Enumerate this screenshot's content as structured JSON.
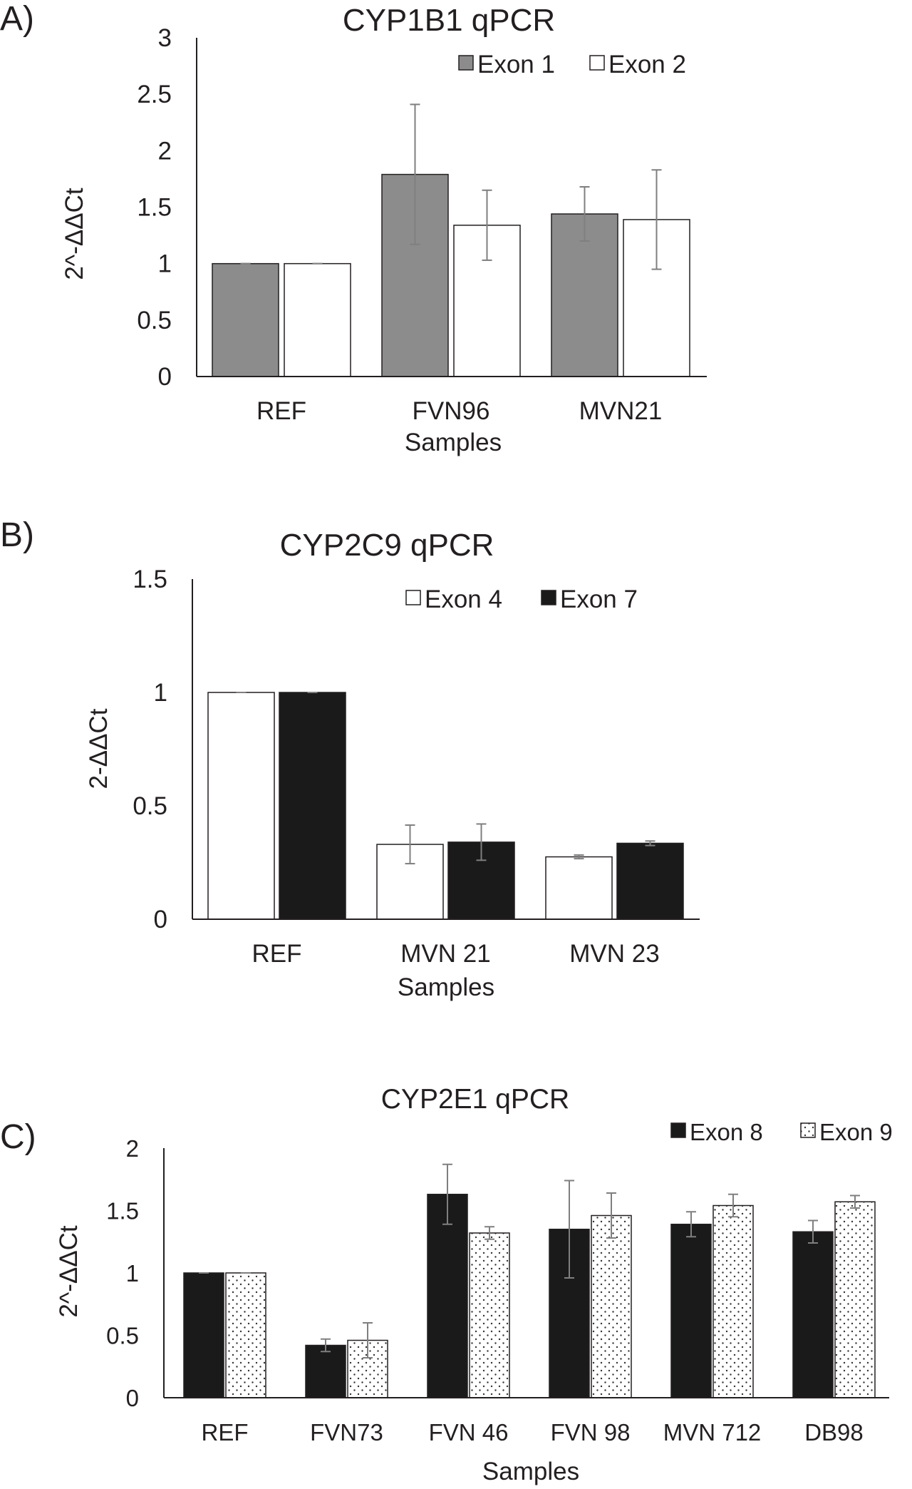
{
  "chart_data": [
    {
      "panel_label": "A)",
      "type": "bar",
      "title": "CYP1B1 qPCR",
      "xlabel": "Samples",
      "ylabel": "2^-ΔΔCt",
      "ylim": [
        0,
        3
      ],
      "yticks": [
        "0",
        "0.5",
        "1",
        "1.5",
        "2",
        "2.5",
        "3"
      ],
      "categories": [
        "REF",
        "FVN96",
        "MVN21"
      ],
      "legend_position": "top-right",
      "series": [
        {
          "name": "Exon 1",
          "fill": "#8c8c8c",
          "pattern": "solid",
          "values": [
            1.0,
            1.79,
            1.44
          ],
          "errors": [
            0.0,
            0.62,
            0.24
          ]
        },
        {
          "name": "Exon 2",
          "fill": "#ffffff",
          "pattern": "solid",
          "values": [
            1.0,
            1.34,
            1.39
          ],
          "errors": [
            0.0,
            0.31,
            0.44
          ]
        }
      ]
    },
    {
      "panel_label": "B)",
      "type": "bar",
      "title": "CYP2C9 qPCR",
      "xlabel": "Samples",
      "ylabel": "2-ΔΔCt",
      "ylim": [
        0,
        1.5
      ],
      "yticks": [
        "0",
        "0.5",
        "1",
        "1.5"
      ],
      "categories": [
        "REF",
        "MVN 21",
        "MVN 23"
      ],
      "legend_position": "top-right",
      "series": [
        {
          "name": "Exon 4",
          "fill": "#ffffff",
          "pattern": "solid",
          "values": [
            1.0,
            0.33,
            0.275
          ],
          "errors": [
            0.0,
            0.085,
            0.008
          ]
        },
        {
          "name": "Exon 7",
          "fill": "#1a1a1a",
          "pattern": "solid",
          "values": [
            1.0,
            0.34,
            0.335
          ],
          "errors": [
            0.0,
            0.08,
            0.01
          ]
        }
      ]
    },
    {
      "panel_label": "C)",
      "type": "bar",
      "title": "CYP2E1 qPCR",
      "xlabel": "Samples",
      "ylabel": "2^-ΔΔCt",
      "ylim": [
        0,
        2
      ],
      "yticks": [
        "0",
        "0.5",
        "1",
        "1.5",
        "2"
      ],
      "categories": [
        "REF",
        "FVN73",
        "FVN 46",
        "FVN 98",
        "MVN 712",
        "DB98"
      ],
      "legend_position": "top-right",
      "series": [
        {
          "name": "Exon 8",
          "fill": "#1a1a1a",
          "pattern": "solid",
          "values": [
            1.0,
            0.42,
            1.63,
            1.35,
            1.39,
            1.33
          ],
          "errors": [
            0.0,
            0.05,
            0.24,
            0.39,
            0.1,
            0.09
          ]
        },
        {
          "name": "Exon 9",
          "fill": "#ffffff",
          "pattern": "dots",
          "values": [
            1.0,
            0.46,
            1.32,
            1.46,
            1.54,
            1.57
          ],
          "errors": [
            0.0,
            0.14,
            0.05,
            0.18,
            0.09,
            0.05
          ]
        }
      ]
    }
  ]
}
